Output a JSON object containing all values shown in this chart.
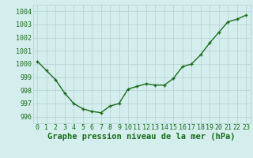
{
  "x": [
    0,
    1,
    2,
    3,
    4,
    5,
    6,
    7,
    8,
    9,
    10,
    11,
    12,
    13,
    14,
    15,
    16,
    17,
    18,
    19,
    20,
    21,
    22,
    23
  ],
  "y": [
    1000.2,
    999.5,
    998.8,
    997.8,
    997.0,
    996.6,
    996.4,
    996.3,
    996.8,
    997.0,
    998.1,
    998.3,
    998.5,
    998.4,
    998.4,
    998.9,
    999.8,
    1000.0,
    1000.7,
    1001.6,
    1002.4,
    1003.2,
    1003.4,
    1003.7
  ],
  "line_color": "#1a6b1a",
  "marker": "+",
  "bg_color": "#d4eeee",
  "grid_color": "#b8d4d4",
  "xlabel": "Graphe pression niveau de la mer (hPa)",
  "xlabel_color": "#1a6b1a",
  "ylim": [
    995.5,
    1004.5
  ],
  "yticks": [
    996,
    997,
    998,
    999,
    1000,
    1001,
    1002,
    1003,
    1004
  ],
  "xticks": [
    0,
    1,
    2,
    3,
    4,
    5,
    6,
    7,
    8,
    9,
    10,
    11,
    12,
    13,
    14,
    15,
    16,
    17,
    18,
    19,
    20,
    21,
    22,
    23
  ],
  "tick_label_color": "#1a6b1a",
  "tick_label_fontsize": 6,
  "xlabel_fontsize": 7.5,
  "linewidth": 1.0,
  "markersize": 3.5,
  "markeredgewidth": 1.0
}
